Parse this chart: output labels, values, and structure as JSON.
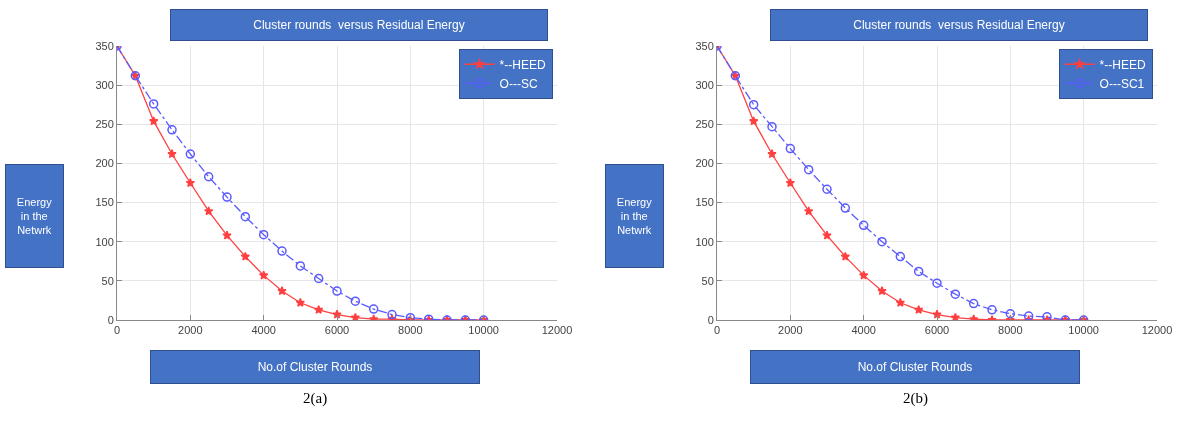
{
  "chart_data": [
    {
      "type": "line",
      "title": "Cluster rounds  versus Residual Energy",
      "xlabel": "No.of Cluster Rounds",
      "ylabel": "Energy\nin the\nNetwrk",
      "annotations": [
        "2(a)"
      ],
      "x": [
        0,
        500,
        1000,
        1500,
        2000,
        2500,
        3000,
        3500,
        4000,
        4500,
        5000,
        5500,
        6000,
        6500,
        7000,
        7500,
        8000,
        8500,
        9000,
        9500,
        10000
      ],
      "series": [
        {
          "name": "*--HEED",
          "color": "#ff4040",
          "marker": "star",
          "line_style": "solid",
          "values": [
            350,
            312,
            254,
            212,
            175,
            139,
            108,
            81,
            57,
            37,
            22,
            13,
            7,
            3,
            1,
            1,
            0,
            0,
            0,
            0,
            0
          ]
        },
        {
          "name": "O---SC",
          "color": "#5a5aff",
          "marker": "circle",
          "line_style": "dashed",
          "values": [
            350,
            312,
            276,
            243,
            212,
            183,
            157,
            132,
            109,
            88,
            69,
            53,
            37,
            24,
            14,
            7,
            3,
            1,
            0,
            0,
            0
          ]
        }
      ],
      "xlim": [
        0,
        12000
      ],
      "xticks": [
        0,
        2000,
        4000,
        6000,
        8000,
        10000,
        12000
      ],
      "ylim": [
        0,
        350
      ],
      "yticks": [
        0,
        50,
        100,
        150,
        200,
        250,
        300,
        350
      ],
      "grid": true,
      "legend": "top right"
    },
    {
      "type": "line",
      "title": "Cluster rounds  versus Residual Energy",
      "xlabel": "No.of Cluster Rounds",
      "ylabel": "Energy\nin the\nNetwrk",
      "annotations": [
        "2(b)"
      ],
      "x": [
        0,
        500,
        1000,
        1500,
        2000,
        2500,
        3000,
        3500,
        4000,
        4500,
        5000,
        5500,
        6000,
        6500,
        7000,
        7500,
        8000,
        8500,
        9000,
        9500,
        10000
      ],
      "series": [
        {
          "name": "*--HEED",
          "color": "#ff4040",
          "marker": "star",
          "line_style": "solid",
          "values": [
            350,
            312,
            254,
            212,
            175,
            139,
            108,
            81,
            57,
            37,
            22,
            13,
            7,
            3,
            1,
            0,
            0,
            0,
            0,
            0,
            0
          ]
        },
        {
          "name": "O---SC1",
          "color": "#5a5aff",
          "marker": "circle",
          "line_style": "dashed",
          "values": [
            350,
            312,
            275,
            247,
            219,
            192,
            167,
            143,
            121,
            100,
            81,
            62,
            47,
            33,
            21,
            13,
            8,
            5,
            4,
            0,
            0
          ]
        }
      ],
      "xlim": [
        0,
        12000
      ],
      "xticks": [
        0,
        2000,
        4000,
        6000,
        8000,
        10000,
        12000
      ],
      "ylim": [
        0,
        350
      ],
      "yticks": [
        0,
        50,
        100,
        150,
        200,
        250,
        300,
        350
      ],
      "grid": true,
      "legend": "top right"
    }
  ]
}
